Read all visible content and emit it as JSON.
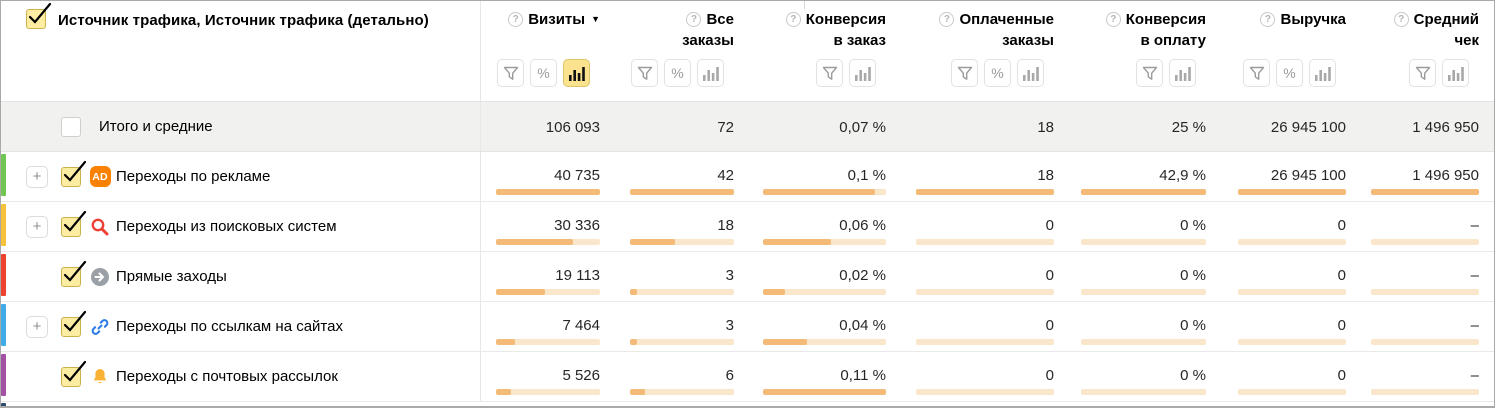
{
  "sym": {
    "help": "?",
    "sort_desc": "▼",
    "percent": "%",
    "expand": "+"
  },
  "colors": {
    "bar_fill": "#f3bb77",
    "bar_track": "#fae7cb",
    "active_button_bg": "#fae28e",
    "checkbox_bg": "#fceda3",
    "totals_row_bg": "#f1f1ef",
    "ad_badge": "#fb8200"
  },
  "header": {
    "dimension_label": "Источник трафика, Источник трафика (детально)",
    "columns": [
      {
        "line1": "Визиты",
        "line2": "",
        "sorted": "desc"
      },
      {
        "line1": "Все",
        "line2": "заказы"
      },
      {
        "line1": "Конверсия",
        "line2": "в заказ"
      },
      {
        "line1": "Оплаченные",
        "line2": "заказы"
      },
      {
        "line1": "Конверсия",
        "line2": "в оплату"
      },
      {
        "line1": "Выручка",
        "line2": ""
      },
      {
        "line1": "Средний",
        "line2": "чек"
      }
    ]
  },
  "totals": {
    "label": "Итого и средние",
    "values": [
      "106 093",
      "72",
      "0,07 %",
      "18",
      "25 %",
      "26 945 100",
      "1 496 950"
    ]
  },
  "rows": [
    {
      "label": "Переходы по рекламе",
      "badge": "AD",
      "stripe": "#71c653",
      "values": [
        "40 735",
        "42",
        "0,1 %",
        "18",
        "42,9 %",
        "26 945 100",
        "1 496 950"
      ],
      "bars": [
        100,
        100,
        91,
        100,
        100,
        100,
        100
      ]
    },
    {
      "label": "Переходы из поисковых систем",
      "stripe": "#f6c13b",
      "values": [
        "30 336",
        "18",
        "0,06 %",
        "0",
        "0 %",
        "0",
        "–"
      ],
      "bars": [
        74,
        43,
        55,
        0,
        0,
        0,
        0
      ]
    },
    {
      "label": "Прямые заходы",
      "stripe": "#f0432f",
      "values": [
        "19 113",
        "3",
        "0,02 %",
        "0",
        "0 %",
        "0",
        "–"
      ],
      "bars": [
        47,
        7,
        18,
        0,
        0,
        0,
        0
      ]
    },
    {
      "label": "Переходы по ссылкам на сайтах",
      "stripe": "#3fabe8",
      "values": [
        "7 464",
        "3",
        "0,04 %",
        "0",
        "0 %",
        "0",
        "–"
      ],
      "bars": [
        18,
        7,
        36,
        0,
        0,
        0,
        0
      ]
    },
    {
      "label": "Переходы с почтовых рассылок",
      "stripe": "#a352a3",
      "values": [
        "5 526",
        "6",
        "0,11 %",
        "0",
        "0 %",
        "0",
        "–"
      ],
      "bars": [
        14,
        14,
        100,
        0,
        0,
        0,
        0
      ]
    }
  ],
  "next_row_stripe": "#2e4b6e"
}
